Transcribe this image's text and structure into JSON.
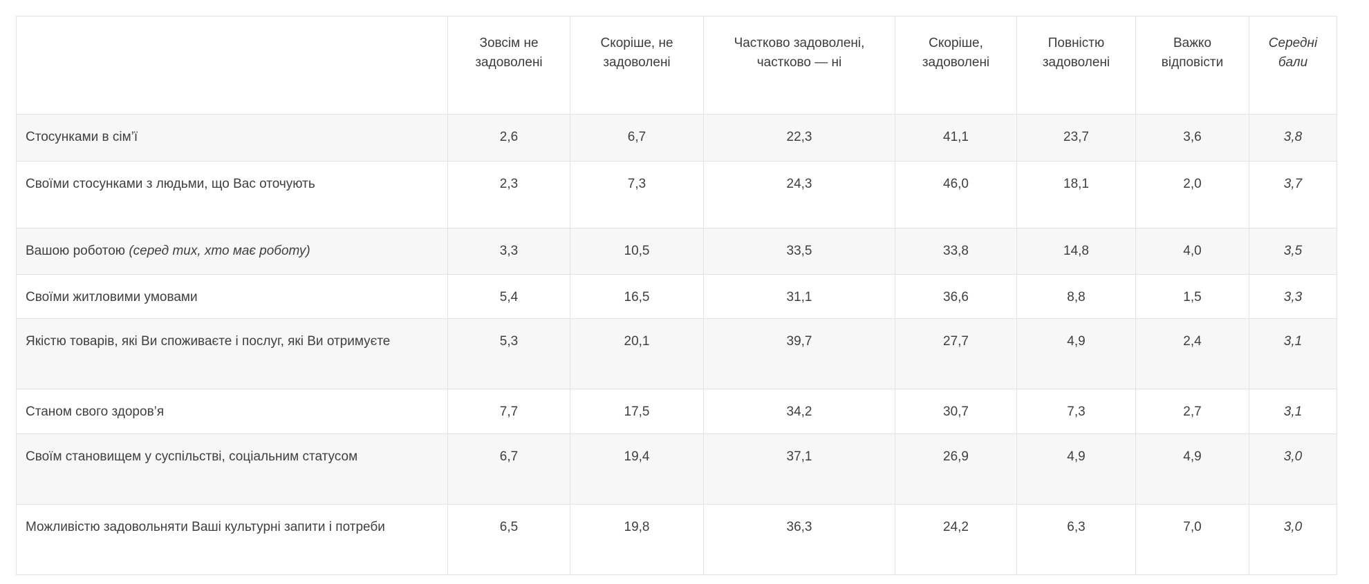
{
  "table": {
    "corner": "",
    "columns": [
      "Зовсім не задоволені",
      "Скоріше, не задоволені",
      "Частково задоволені, частково — ні",
      "Скоріше, задоволені",
      "Повністю задоволені",
      "Важко відповісти",
      "Середні бали"
    ],
    "rows": [
      {
        "label": "Стосунками в сім’ї",
        "note": "",
        "values": [
          "2,6",
          "6,7",
          "22,3",
          "41,1",
          "23,7",
          "3,6"
        ],
        "mean": "3,8"
      },
      {
        "label": "Своїми стосунками з людьми, що Вас оточують",
        "note": "",
        "values": [
          "2,3",
          "7,3",
          "24,3",
          "46,0",
          "18,1",
          "2,0"
        ],
        "mean": "3,7"
      },
      {
        "label": "Вашою роботою",
        "note": "(серед тих, хто має роботу)",
        "values": [
          "3,3",
          "10,5",
          "33,5",
          "33,8",
          "14,8",
          "4,0"
        ],
        "mean": "3,5"
      },
      {
        "label": "Своїми житловими умовами",
        "note": "",
        "values": [
          "5,4",
          "16,5",
          "31,1",
          "36,6",
          "8,8",
          "1,5"
        ],
        "mean": "3,3"
      },
      {
        "label": "Якістю товарів, які Ви споживаєте і послуг, які Ви отримуєте",
        "note": "",
        "values": [
          "5,3",
          "20,1",
          "39,7",
          "27,7",
          "4,9",
          "2,4"
        ],
        "mean": "3,1"
      },
      {
        "label": "Станом свого здоров’я",
        "note": "",
        "values": [
          "7,7",
          "17,5",
          "34,2",
          "30,7",
          "7,3",
          "2,7"
        ],
        "mean": "3,1"
      },
      {
        "label": "Своїм становищем у суспільстві, соціальним статусом",
        "note": "",
        "values": [
          "6,7",
          "19,4",
          "37,1",
          "26,9",
          "4,9",
          "4,9"
        ],
        "mean": "3,0"
      },
      {
        "label": "Можливістю задовольняти Ваші культурні запити і потреби",
        "note": "",
        "values": [
          "6,5",
          "19,8",
          "36,3",
          "24,2",
          "6,3",
          "7,0"
        ],
        "mean": "3,0"
      }
    ]
  },
  "colors": {
    "stripe": "#f7f7f7",
    "border": "#e2e2e2",
    "text": "#3f3f3f"
  },
  "chart_data": {
    "type": "table",
    "title": "",
    "columns": [
      "Зовсім не задоволені",
      "Скоріше, не задоволені",
      "Частково задоволені, частково — ні",
      "Скоріше, задоволені",
      "Повністю задоволені",
      "Важко відповісти",
      "Середні бали"
    ],
    "categories": [
      "Стосунками в сім’ї",
      "Своїми стосунками з людьми, що Вас оточують",
      "Вашою роботою (серед тих, хто має роботу)",
      "Своїми житловими умовами",
      "Якістю товарів, які Ви споживаєте і послуг, які Ви отримуєте",
      "Станом свого здоров’я",
      "Своїм становищем у суспільстві, соціальним статусом",
      "Можливістю задовольняти Ваші культурні запити і потреби"
    ],
    "series": [
      {
        "name": "Зовсім не задоволені",
        "values": [
          2.6,
          2.3,
          3.3,
          5.4,
          5.3,
          7.7,
          6.7,
          6.5
        ]
      },
      {
        "name": "Скоріше, не задоволені",
        "values": [
          6.7,
          7.3,
          10.5,
          16.5,
          20.1,
          17.5,
          19.4,
          19.8
        ]
      },
      {
        "name": "Частково задоволені, частково — ні",
        "values": [
          22.3,
          24.3,
          33.5,
          31.1,
          39.7,
          34.2,
          37.1,
          36.3
        ]
      },
      {
        "name": "Скоріше, задоволені",
        "values": [
          41.1,
          46.0,
          33.8,
          36.6,
          27.7,
          30.7,
          26.9,
          24.2
        ]
      },
      {
        "name": "Повністю задоволені",
        "values": [
          23.7,
          18.1,
          14.8,
          8.8,
          4.9,
          7.3,
          4.9,
          6.3
        ]
      },
      {
        "name": "Важко відповісти",
        "values": [
          3.6,
          2.0,
          4.0,
          1.5,
          2.4,
          2.7,
          4.9,
          7.0
        ]
      },
      {
        "name": "Середні бали",
        "values": [
          3.8,
          3.7,
          3.5,
          3.3,
          3.1,
          3.1,
          3.0,
          3.0
        ]
      }
    ]
  }
}
